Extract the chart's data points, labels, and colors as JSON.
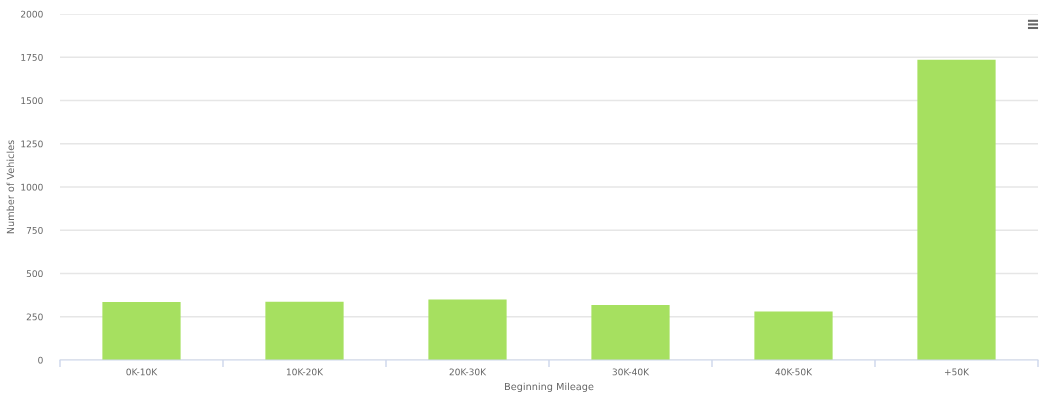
{
  "chart_data": {
    "type": "bar",
    "categories": [
      "0K-10K",
      "10K-20K",
      "20K-30K",
      "30K-40K",
      "40K-50K",
      "+50K"
    ],
    "values": [
      335,
      337,
      350,
      318,
      280,
      1735
    ],
    "color": "#a6e060",
    "xlabel": "Beginning Mileage",
    "ylabel": "Number of Vehicles",
    "ylim": [
      0,
      2000
    ],
    "yticks": [
      0,
      250,
      500,
      750,
      1000,
      1250,
      1500,
      1750,
      2000
    ],
    "grid": "y"
  }
}
